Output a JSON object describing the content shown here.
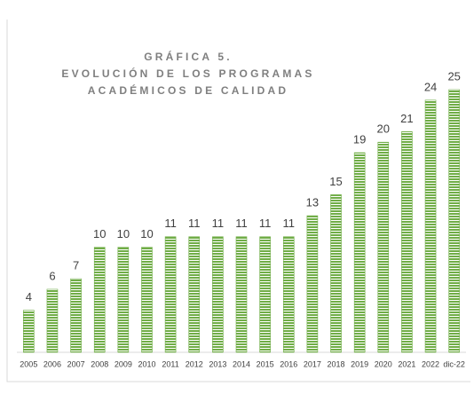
{
  "chart_data": {
    "type": "bar",
    "title": [
      "GRÁFICA 5.",
      "EVOLUCIÓN DE LOS PROGRAMAS",
      "ACADÉMICOS DE CALIDAD"
    ],
    "categories": [
      "2005",
      "2006",
      "2007",
      "2008",
      "2009",
      "2010",
      "2011",
      "2012",
      "2013",
      "2014",
      "2015",
      "2016",
      "2017",
      "2018",
      "2019",
      "2020",
      "2021",
      "2022",
      "dic-22"
    ],
    "values": [
      4,
      6,
      7,
      10,
      10,
      10,
      11,
      11,
      11,
      11,
      11,
      11,
      13,
      15,
      19,
      20,
      21,
      24,
      25
    ],
    "color": "#70ad47",
    "ylim": [
      0,
      25
    ]
  }
}
